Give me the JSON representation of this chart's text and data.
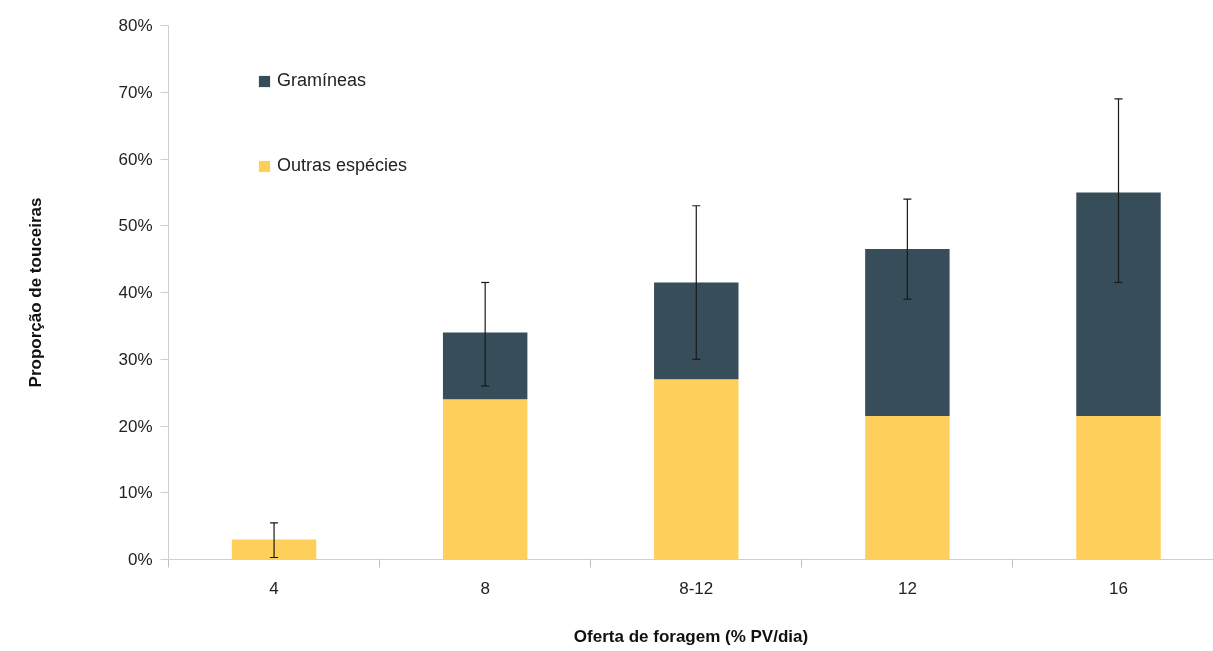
{
  "chart_data": {
    "type": "bar",
    "stacked": true,
    "xlabel": "Oferta de foragem (% PV/dia)",
    "ylabel": "Proporção de touceiras",
    "categories": [
      "4",
      "8",
      "8-12",
      "12",
      "16"
    ],
    "series": [
      {
        "name": "Outras espécies",
        "color": "#fecf5b",
        "values": [
          3,
          24,
          27,
          21.5,
          21.5
        ],
        "errors": [
          [
            0.3,
            5.5
          ],
          null,
          null,
          null,
          null
        ]
      },
      {
        "name": "Gramíneas",
        "color": "#374d59",
        "values": [
          null,
          10,
          14.5,
          25,
          33.5
        ],
        "errors": [
          null,
          [
            26,
            41.5
          ],
          [
            30,
            53
          ],
          [
            39,
            54
          ],
          [
            41.5,
            69
          ]
        ]
      }
    ],
    "ylim": [
      0,
      80
    ],
    "yticks": [
      {
        "value": 0,
        "label": "0%"
      },
      {
        "value": 10,
        "label": "10%"
      },
      {
        "value": 20,
        "label": "20%"
      },
      {
        "value": 30,
        "label": "30%"
      },
      {
        "value": 40,
        "label": "40%"
      },
      {
        "value": 50,
        "label": "50%"
      },
      {
        "value": 60,
        "label": "60%"
      },
      {
        "value": 70,
        "label": "70%"
      },
      {
        "value": 80,
        "label": "80%"
      }
    ],
    "grid": false,
    "legend": "top left"
  }
}
